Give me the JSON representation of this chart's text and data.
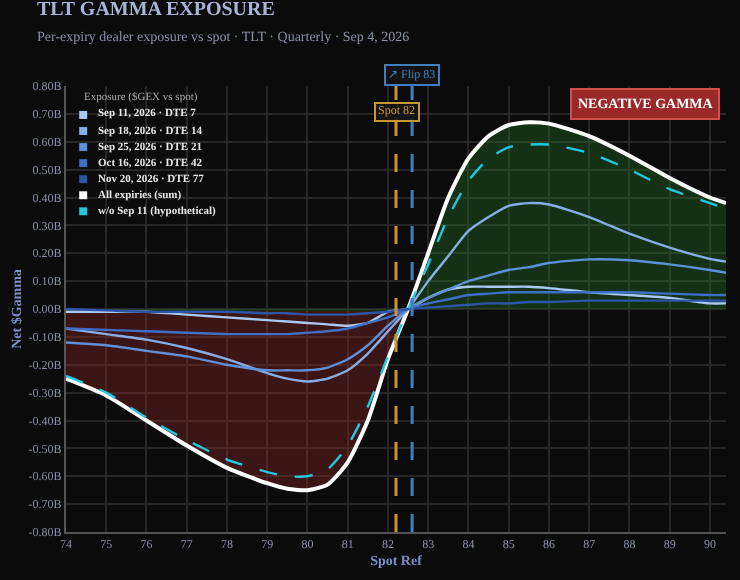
{
  "chart_data": {
    "type": "line",
    "title": "TLT GAMMA EXPOSURE",
    "subtitle": "Per-expiry dealer exposure vs spot · TLT · Quarterly · Sep 4, 2026",
    "xlabel": "Spot Ref",
    "ylabel": "Net $Gamma",
    "legend_title": "Exposure ($GEX vs spot)",
    "annotations": [
      "NEGATIVE GAMMA"
    ],
    "x": [
      74,
      75,
      76,
      77,
      78,
      79,
      79.5,
      80,
      80.5,
      81,
      81.5,
      82,
      82.5,
      83,
      83.5,
      84,
      84.5,
      85,
      85.5,
      86,
      87,
      88,
      89,
      90,
      90.4
    ],
    "series": [
      {
        "name": "Sep 11, 2026 · DTE 7",
        "color": "#a9c9f2",
        "values": [
          -0.01,
          -0.01,
          -0.01,
          -0.02,
          -0.03,
          -0.04,
          -0.045,
          -0.05,
          -0.055,
          -0.06,
          -0.05,
          -0.01,
          0.0,
          0.04,
          0.07,
          0.08,
          0.08,
          0.08,
          0.08,
          0.075,
          0.06,
          0.05,
          0.04,
          0.02,
          0.02
        ]
      },
      {
        "name": "Sep 18, 2026 · DTE 14",
        "color": "#86aee6",
        "values": [
          -0.07,
          -0.09,
          -0.11,
          -0.14,
          -0.18,
          -0.23,
          -0.25,
          -0.26,
          -0.25,
          -0.22,
          -0.16,
          -0.08,
          0.0,
          0.1,
          0.19,
          0.28,
          0.33,
          0.37,
          0.38,
          0.375,
          0.33,
          0.27,
          0.22,
          0.18,
          0.17
        ]
      },
      {
        "name": "Sep 25, 2026 · DTE 21",
        "color": "#5f8fd6",
        "values": [
          -0.12,
          -0.13,
          -0.15,
          -0.17,
          -0.2,
          -0.22,
          -0.22,
          -0.22,
          -0.21,
          -0.18,
          -0.13,
          -0.06,
          0.0,
          0.04,
          0.07,
          0.1,
          0.12,
          0.14,
          0.15,
          0.165,
          0.178,
          0.175,
          0.16,
          0.14,
          0.13
        ]
      },
      {
        "name": "Oct 16, 2026 · DTE 42",
        "color": "#3f6fc4",
        "values": [
          -0.07,
          -0.075,
          -0.08,
          -0.085,
          -0.09,
          -0.09,
          -0.09,
          -0.085,
          -0.08,
          -0.07,
          -0.05,
          -0.03,
          0.0,
          0.02,
          0.035,
          0.05,
          0.055,
          0.06,
          0.06,
          0.06,
          0.06,
          0.06,
          0.055,
          0.05,
          0.05
        ]
      },
      {
        "name": "Nov 20, 2026 · DTE 77",
        "color": "#2c55a8",
        "values": [
          0.0,
          -0.005,
          -0.01,
          -0.01,
          -0.01,
          -0.015,
          -0.015,
          -0.02,
          -0.02,
          -0.02,
          -0.015,
          -0.01,
          0.0,
          0.005,
          0.01,
          0.015,
          0.02,
          0.02,
          0.025,
          0.025,
          0.03,
          0.03,
          0.03,
          0.03,
          0.03
        ]
      },
      {
        "name": "All expiries (sum)",
        "type": "area",
        "color": "#ffffff",
        "values": [
          -0.25,
          -0.31,
          -0.4,
          -0.49,
          -0.57,
          -0.625,
          -0.645,
          -0.65,
          -0.63,
          -0.55,
          -0.4,
          -0.18,
          0.0,
          0.2,
          0.4,
          0.54,
          0.62,
          0.66,
          0.67,
          0.665,
          0.62,
          0.55,
          0.47,
          0.4,
          0.38
        ]
      },
      {
        "name": "w/o Sep 11 (hypothetical)",
        "color": "#22c8e0",
        "line_style": "dashed",
        "values": [
          -0.24,
          -0.3,
          -0.39,
          -0.47,
          -0.54,
          -0.585,
          -0.6,
          -0.6,
          -0.575,
          -0.49,
          -0.35,
          -0.17,
          0.0,
          0.16,
          0.33,
          0.46,
          0.54,
          0.58,
          0.59,
          0.59,
          0.56,
          0.5,
          0.43,
          0.38,
          0.36
        ]
      }
    ],
    "ref_lines": [
      {
        "axis": "x",
        "value": 82.2,
        "label": "Spot 82",
        "color": "#c8962e",
        "line_style": "dashed"
      },
      {
        "axis": "x",
        "value": 82.6,
        "label": "↗ Flip 83",
        "color": "#3f7fc0",
        "line_style": "dashed"
      }
    ],
    "xlim": [
      74,
      90.4
    ],
    "xticks": [
      74,
      75,
      76,
      77,
      78,
      79,
      80,
      81,
      82,
      83,
      84,
      85,
      86,
      87,
      88,
      89,
      90
    ],
    "ylim": [
      -0.8,
      0.8
    ],
    "yticks": [
      {
        "value": -0.8,
        "label": "-0.80B"
      },
      {
        "value": -0.7,
        "label": "-0.70B"
      },
      {
        "value": -0.6,
        "label": "-0.60B"
      },
      {
        "value": -0.5,
        "label": "-0.50B"
      },
      {
        "value": -0.4,
        "label": "-0.40B"
      },
      {
        "value": -0.3,
        "label": "-0.30B"
      },
      {
        "value": -0.2,
        "label": "-0.20B"
      },
      {
        "value": -0.1,
        "label": "-0.10B"
      },
      {
        "value": 0,
        "label": "0.00B"
      },
      {
        "value": 0.1,
        "label": "0.10B"
      },
      {
        "value": 0.2,
        "label": "0.20B"
      },
      {
        "value": 0.3,
        "label": "0.30B"
      },
      {
        "value": 0.4,
        "label": "0.40B"
      },
      {
        "value": 0.5,
        "label": "0.50B"
      },
      {
        "value": 0.6,
        "label": "0.60B"
      },
      {
        "value": 0.7,
        "label": "0.70B"
      },
      {
        "value": 0.8,
        "label": "0.80B"
      }
    ],
    "grid": true,
    "legend": "top left",
    "line_style": "solid",
    "marker": "none"
  }
}
